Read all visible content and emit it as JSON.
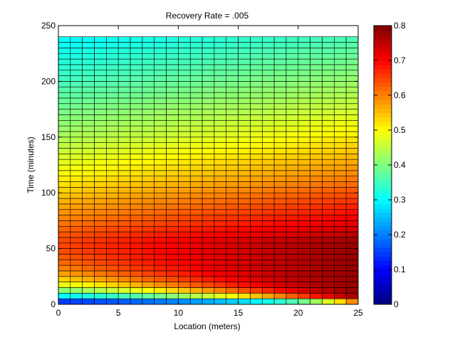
{
  "chart_data": {
    "type": "heatmap",
    "title": "Recovery Rate = .005",
    "xlabel": "Location (meters)",
    "ylabel": "Time (minutes)",
    "xlim": [
      0,
      25
    ],
    "ylim": [
      0,
      250
    ],
    "x_ticks": [
      "0",
      "5",
      "10",
      "15",
      "20",
      "25"
    ],
    "y_ticks": [
      "0",
      "50",
      "100",
      "150",
      "200",
      "250"
    ],
    "colormap": "jet",
    "clim": [
      0,
      0.8
    ],
    "colorbar_ticks": [
      "0",
      "0.1",
      "0.2",
      "0.3",
      "0.4",
      "0.5",
      "0.6",
      "0.7",
      "0.8"
    ],
    "grid": "mesh lines on",
    "x_cells": 25,
    "y_cells": 48,
    "grid_x_range": [
      0,
      25
    ],
    "grid_y_range": [
      0,
      240
    ],
    "colorbar_location": "right",
    "value_description": "value rises from about 0.05 at (0,0) to about 0.78 at (25,0); along time at x=0 it peaks near 0.66 around 60–70 min, then decays to about 0.28 at 240 min"
  }
}
